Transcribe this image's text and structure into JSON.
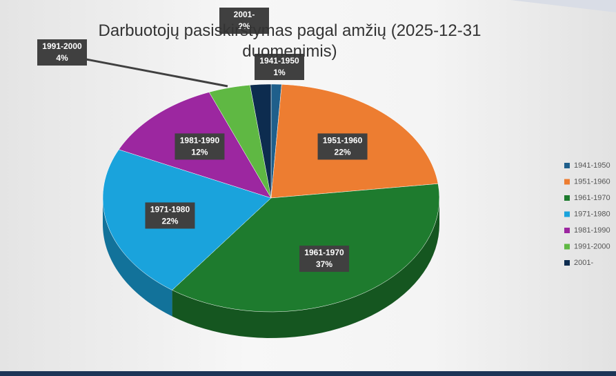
{
  "chart_data": {
    "type": "pie3d",
    "title": "Darbuotojų pasiskirstymas pagal amžių (2025-12-31 duomenimis)",
    "categories": [
      "1941-1950",
      "1951-1960",
      "1961-1970",
      "1971-1980",
      "1981-1990",
      "1991-2000",
      "2001-"
    ],
    "values": [
      1,
      22,
      37,
      22,
      12,
      4,
      2
    ],
    "value_labels": [
      "1%",
      "22%",
      "37%",
      "22%",
      "12%",
      "4%",
      "2%"
    ],
    "colors": [
      "#1f5f8b",
      "#ed7d31",
      "#1e7b2e",
      "#1aa3dc",
      "#9c27a0",
      "#5fb843",
      "#0d2c4f"
    ],
    "legend": "right"
  }
}
